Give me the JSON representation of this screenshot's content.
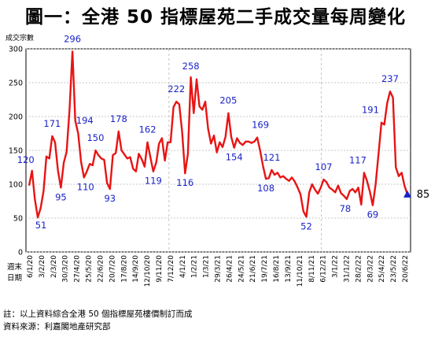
{
  "title": "圖一：全港 50 指標屋苑二手成交量每周變化",
  "chart_data": {
    "type": "line",
    "ylabel": "成交宗數",
    "xlabel": "週末\n日期",
    "ylim": [
      0,
      300
    ],
    "yticks": [
      0,
      50,
      100,
      150,
      200,
      250,
      300
    ],
    "grid": true,
    "x_tick_labels": [
      "6/1/20",
      "3/2/20",
      "2/3/20",
      "30/3/20",
      "27/4/20",
      "25/5/20",
      "22/6/20",
      "20/7/20",
      "17/8/20",
      "14/9/20",
      "12/10/20",
      "9/11/20",
      "7/12/20",
      "4/1/21",
      "1/2/21",
      "1/3/21",
      "29/3/21",
      "26/4/21",
      "24/5/21",
      "21/6/21",
      "19/7/21",
      "16/8/21",
      "13/9/21",
      "11/10/21",
      "8/11/21",
      "6/12/21",
      "3/1/22",
      "31/1/22",
      "28/2/22",
      "28/3/22",
      "25/4/22",
      "23/5/22",
      "20/6/22"
    ],
    "values": [
      98,
      120,
      78,
      51,
      65,
      90,
      141,
      138,
      171,
      162,
      120,
      95,
      132,
      148,
      210,
      296,
      194,
      175,
      133,
      110,
      119,
      130,
      128,
      150,
      143,
      138,
      136,
      102,
      93,
      143,
      146,
      178,
      150,
      144,
      138,
      140,
      123,
      119,
      145,
      137,
      126,
      162,
      140,
      119,
      132,
      160,
      168,
      135,
      162,
      162,
      214,
      222,
      218,
      177,
      116,
      145,
      258,
      205,
      255,
      215,
      210,
      222,
      182,
      160,
      172,
      147,
      162,
      155,
      170,
      205,
      170,
      154,
      168,
      161,
      158,
      163,
      163,
      161,
      163,
      169,
      150,
      127,
      108,
      109,
      121,
      114,
      117,
      110,
      112,
      108,
      105,
      110,
      104,
      95,
      85,
      60,
      52,
      88,
      100,
      92,
      86,
      95,
      107,
      103,
      95,
      92,
      88,
      98,
      87,
      83,
      78,
      90,
      93,
      88,
      95,
      70,
      117,
      105,
      89,
      69,
      100,
      145,
      191,
      188,
      220,
      237,
      228,
      125,
      112,
      117,
      98,
      85
    ],
    "data_labels": [
      {
        "value": 120,
        "text": "120",
        "color": "#1a22c8"
      },
      {
        "value": 51,
        "text": "51",
        "color": "#1a22c8"
      },
      {
        "value": 95,
        "text": "95",
        "color": "#1a22c8"
      },
      {
        "value": 171,
        "text": "171",
        "color": "#1a22c8"
      },
      {
        "value": 296,
        "text": "296",
        "color": "#1a22c8"
      },
      {
        "value": 194,
        "text": "194",
        "color": "#1a22c8"
      },
      {
        "value": 110,
        "text": "110",
        "color": "#1a22c8"
      },
      {
        "value": 150,
        "text": "150",
        "color": "#1a22c8"
      },
      {
        "value": 93,
        "text": "93",
        "color": "#1a22c8"
      },
      {
        "value": 178,
        "text": "178",
        "color": "#1a22c8"
      },
      {
        "value": 162,
        "text": "162",
        "color": "#1a22c8"
      },
      {
        "value": 119,
        "text": "119",
        "color": "#1a22c8"
      },
      {
        "value": 222,
        "text": "222",
        "color": "#1a22c8"
      },
      {
        "value": 116,
        "text": "116",
        "color": "#1a22c8"
      },
      {
        "value": 258,
        "text": "258",
        "color": "#1a22c8"
      },
      {
        "value": 205,
        "text": "205",
        "color": "#1a22c8"
      },
      {
        "value": 154,
        "text": "154",
        "color": "#1a22c8"
      },
      {
        "value": 169,
        "text": "169",
        "color": "#1a22c8"
      },
      {
        "value": 108,
        "text": "108",
        "color": "#1a22c8"
      },
      {
        "value": 121,
        "text": "121",
        "color": "#1a22c8"
      },
      {
        "value": 52,
        "text": "52",
        "color": "#1a22c8"
      },
      {
        "value": 107,
        "text": "107",
        "color": "#1a22c8"
      },
      {
        "value": 78,
        "text": "78",
        "color": "#1a22c8"
      },
      {
        "value": 117,
        "text": "117",
        "color": "#1a22c8"
      },
      {
        "value": 191,
        "text": "191",
        "color": "#1a22c8"
      },
      {
        "value": 69,
        "text": "69",
        "color": "#1a22c8"
      },
      {
        "value": 237,
        "text": "237",
        "color": "#1a22c8"
      },
      {
        "value": 85,
        "text": "85",
        "color": "#000000"
      }
    ],
    "line_color": "#e81414",
    "marker_color": "#1a22c8",
    "label_color": "#1a22c8"
  },
  "footnote": "註：以上資料綜合全港 50 個指標屋苑樓價制訂而成",
  "source": "資料來源：利嘉閣地產研究部"
}
